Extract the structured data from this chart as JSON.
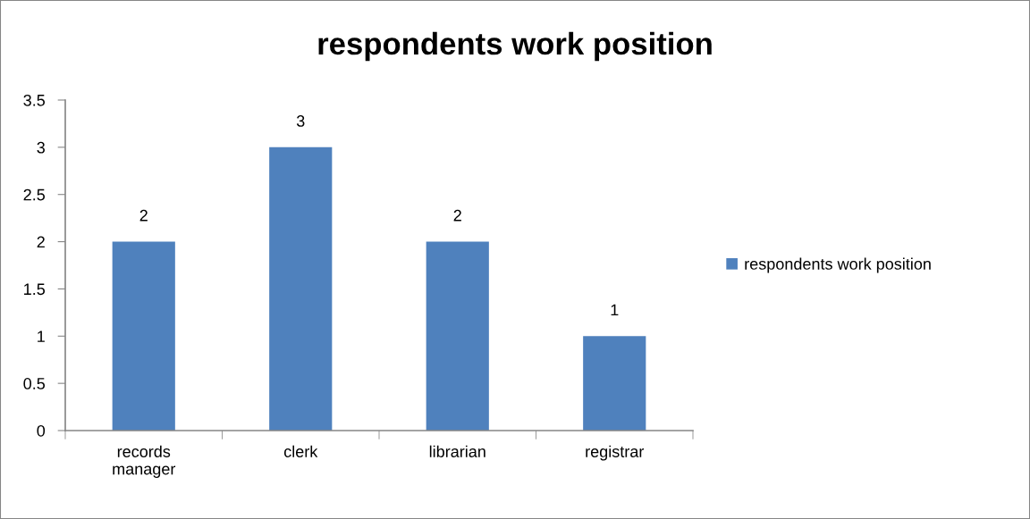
{
  "chart_data": {
    "type": "bar",
    "title": "respondents work position",
    "categories": [
      "records\nmanager",
      "clerk",
      "librarian",
      "registrar"
    ],
    "series": [
      {
        "name": "respondents work position",
        "color": "#4f81bd",
        "values": [
          2,
          3,
          2,
          1
        ]
      }
    ],
    "ylim": [
      0,
      3.5
    ],
    "yticks": [
      0,
      0.5,
      1,
      1.5,
      2,
      2.5,
      3,
      3.5
    ],
    "data_labels": true,
    "grid": false,
    "legend": "right"
  }
}
